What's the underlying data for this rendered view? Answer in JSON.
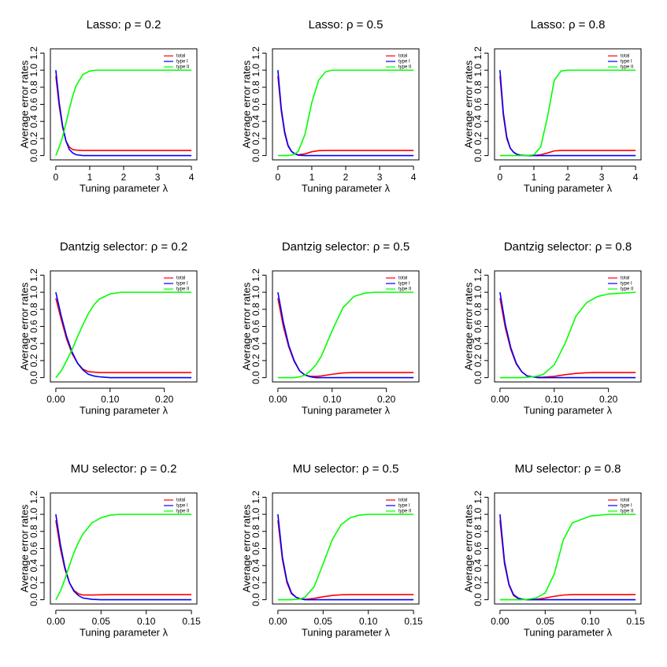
{
  "chart_data": [
    {
      "type": "line",
      "title": "Lasso: ρ = 0.2",
      "xlabel": "Tuning parameter λ",
      "ylabel": "Average error rates",
      "legend": "topright",
      "x": [
        0,
        0.1,
        0.2,
        0.3,
        0.4,
        0.5,
        0.6,
        0.8,
        1,
        1.2,
        1.4,
        1.6,
        1.8,
        2,
        2.5,
        3,
        4
      ],
      "series": [
        {
          "name": "total",
          "color": "#ff0000",
          "values": [
            0.93,
            0.58,
            0.33,
            0.17,
            0.1,
            0.07,
            0.065,
            0.06,
            0.06,
            0.06,
            0.06,
            0.06,
            0.06,
            0.06,
            0.06,
            0.06,
            0.06
          ]
        },
        {
          "name": "type I",
          "color": "#0000ff",
          "values": [
            1,
            0.62,
            0.35,
            0.17,
            0.07,
            0.03,
            0.01,
            0,
            0,
            0,
            0,
            0,
            0,
            0,
            0,
            0,
            0
          ]
        },
        {
          "name": "type II",
          "color": "#00ff00",
          "values": [
            0,
            0.1,
            0.22,
            0.38,
            0.55,
            0.7,
            0.82,
            0.95,
            0.99,
            1,
            1,
            1,
            1,
            1,
            1,
            1,
            1
          ]
        }
      ],
      "xlim": [
        -0.16,
        4.16
      ],
      "ylim": [
        -0.05,
        1.25
      ],
      "xticks": [
        0,
        1,
        2,
        3,
        4
      ],
      "yticks": [
        {
          "value": 0,
          "label": "0.0"
        },
        0.2,
        0.4,
        0.6,
        0.8,
        {
          "value": 1,
          "label": "1.0"
        },
        1.2
      ]
    },
    {
      "type": "line",
      "title": "Lasso: ρ = 0.5",
      "xlabel": "Tuning parameter λ",
      "ylabel": "Average error rates",
      "legend": "topright",
      "x": [
        0,
        0.1,
        0.2,
        0.3,
        0.4,
        0.5,
        0.6,
        0.8,
        1,
        1.2,
        1.4,
        1.6,
        1.8,
        2,
        2.5,
        3,
        4
      ],
      "series": [
        {
          "name": "total",
          "color": "#ff0000",
          "values": [
            0.93,
            0.52,
            0.26,
            0.11,
            0.05,
            0.02,
            0.01,
            0.02,
            0.045,
            0.058,
            0.06,
            0.06,
            0.06,
            0.06,
            0.06,
            0.06,
            0.06
          ]
        },
        {
          "name": "type I",
          "color": "#0000ff",
          "values": [
            1,
            0.55,
            0.28,
            0.12,
            0.05,
            0.02,
            0.005,
            0,
            0,
            0,
            0,
            0,
            0,
            0,
            0,
            0,
            0
          ]
        },
        {
          "name": "type II",
          "color": "#00ff00",
          "values": [
            0,
            0,
            0,
            0,
            0.005,
            0.02,
            0.05,
            0.25,
            0.62,
            0.88,
            0.98,
            1,
            1,
            1,
            1,
            1,
            1
          ]
        }
      ],
      "xlim": [
        -0.16,
        4.16
      ],
      "ylim": [
        -0.05,
        1.25
      ],
      "xticks": [
        0,
        1,
        2,
        3,
        4
      ],
      "yticks": [
        {
          "value": 0,
          "label": "0.0"
        },
        0.2,
        0.4,
        0.6,
        0.8,
        {
          "value": 1,
          "label": "1.0"
        },
        1.2
      ]
    },
    {
      "type": "line",
      "title": "Lasso: ρ = 0.8",
      "xlabel": "Tuning parameter λ",
      "ylabel": "Average error rates",
      "legend": "topright",
      "x": [
        0,
        0.1,
        0.2,
        0.3,
        0.4,
        0.5,
        0.6,
        0.8,
        1,
        1.2,
        1.4,
        1.6,
        1.8,
        2,
        2.5,
        3,
        4
      ],
      "series": [
        {
          "name": "total",
          "color": "#ff0000",
          "values": [
            0.93,
            0.47,
            0.2,
            0.09,
            0.04,
            0.015,
            0.005,
            0,
            0.002,
            0.01,
            0.03,
            0.055,
            0.06,
            0.06,
            0.06,
            0.06,
            0.06
          ]
        },
        {
          "name": "type I",
          "color": "#0000ff",
          "values": [
            1,
            0.5,
            0.22,
            0.09,
            0.04,
            0.015,
            0.005,
            0,
            0,
            0,
            0,
            0,
            0,
            0,
            0,
            0,
            0
          ]
        },
        {
          "name": "type II",
          "color": "#00ff00",
          "values": [
            0,
            0,
            0,
            0,
            0,
            0,
            0,
            0,
            0.01,
            0.1,
            0.45,
            0.88,
            0.99,
            1,
            1,
            1,
            1
          ]
        }
      ],
      "xlim": [
        -0.16,
        4.16
      ],
      "ylim": [
        -0.05,
        1.25
      ],
      "xticks": [
        0,
        1,
        2,
        3,
        4
      ],
      "yticks": [
        {
          "value": 0,
          "label": "0.0"
        },
        0.2,
        0.4,
        0.6,
        0.8,
        {
          "value": 1,
          "label": "1.0"
        },
        1.2
      ]
    },
    {
      "type": "line",
      "title": "Dantzig selector: ρ = 0.2",
      "xlabel": "Tuning parameter λ",
      "ylabel": "Average error rates",
      "legend": "topright",
      "x": [
        0,
        0.01,
        0.02,
        0.03,
        0.04,
        0.05,
        0.06,
        0.07,
        0.08,
        0.1,
        0.12,
        0.14,
        0.16,
        0.18,
        0.2,
        0.25
      ],
      "series": [
        {
          "name": "total",
          "color": "#ff0000",
          "values": [
            0.93,
            0.68,
            0.45,
            0.28,
            0.17,
            0.1,
            0.07,
            0.065,
            0.06,
            0.06,
            0.06,
            0.06,
            0.06,
            0.06,
            0.06,
            0.06
          ]
        },
        {
          "name": "type I",
          "color": "#0000ff",
          "values": [
            1,
            0.72,
            0.48,
            0.3,
            0.17,
            0.09,
            0.04,
            0.02,
            0.01,
            0,
            0,
            0,
            0,
            0,
            0,
            0
          ]
        },
        {
          "name": "type II",
          "color": "#00ff00",
          "values": [
            0,
            0.08,
            0.2,
            0.33,
            0.48,
            0.62,
            0.75,
            0.85,
            0.92,
            0.98,
            1,
            1,
            1,
            1,
            1,
            1
          ]
        }
      ],
      "xlim": [
        -0.01,
        0.26
      ],
      "ylim": [
        -0.05,
        1.25
      ],
      "xticks": [
        {
          "value": 0,
          "label": "0.00"
        },
        {
          "value": 0.1,
          "label": "0.10"
        },
        {
          "value": 0.2,
          "label": "0.20"
        }
      ],
      "yticks": [
        {
          "value": 0,
          "label": "0.0"
        },
        0.2,
        0.4,
        0.6,
        0.8,
        {
          "value": 1,
          "label": "1.0"
        },
        1.2
      ]
    },
    {
      "type": "line",
      "title": "Dantzig selector: ρ = 0.5",
      "xlabel": "Tuning parameter λ",
      "ylabel": "Average error rates",
      "legend": "topright",
      "x": [
        0,
        0.01,
        0.02,
        0.03,
        0.04,
        0.05,
        0.06,
        0.07,
        0.08,
        0.1,
        0.12,
        0.14,
        0.16,
        0.18,
        0.2,
        0.25
      ],
      "series": [
        {
          "name": "total",
          "color": "#ff0000",
          "values": [
            0.93,
            0.6,
            0.36,
            0.19,
            0.08,
            0.03,
            0.015,
            0.015,
            0.02,
            0.04,
            0.055,
            0.06,
            0.06,
            0.06,
            0.06,
            0.06
          ]
        },
        {
          "name": "type I",
          "color": "#0000ff",
          "values": [
            1,
            0.65,
            0.38,
            0.2,
            0.08,
            0.03,
            0.01,
            0,
            0,
            0,
            0,
            0,
            0,
            0,
            0,
            0
          ]
        },
        {
          "name": "type II",
          "color": "#00ff00",
          "values": [
            0,
            0,
            0,
            0,
            0.01,
            0.03,
            0.08,
            0.15,
            0.25,
            0.55,
            0.82,
            0.95,
            0.99,
            1,
            1,
            1
          ]
        }
      ],
      "xlim": [
        -0.01,
        0.26
      ],
      "ylim": [
        -0.05,
        1.25
      ],
      "xticks": [
        {
          "value": 0,
          "label": "0.00"
        },
        {
          "value": 0.1,
          "label": "0.10"
        },
        {
          "value": 0.2,
          "label": "0.20"
        }
      ],
      "yticks": [
        {
          "value": 0,
          "label": "0.0"
        },
        0.2,
        0.4,
        0.6,
        0.8,
        {
          "value": 1,
          "label": "1.0"
        },
        1.2
      ]
    },
    {
      "type": "line",
      "title": "Dantzig selector: ρ = 0.8",
      "xlabel": "Tuning parameter λ",
      "ylabel": "Average error rates",
      "legend": "topright",
      "x": [
        0,
        0.01,
        0.02,
        0.03,
        0.04,
        0.05,
        0.06,
        0.07,
        0.08,
        0.1,
        0.12,
        0.14,
        0.16,
        0.18,
        0.2,
        0.25
      ],
      "series": [
        {
          "name": "total",
          "color": "#ff0000",
          "values": [
            0.93,
            0.58,
            0.33,
            0.16,
            0.07,
            0.02,
            0.01,
            0.005,
            0.006,
            0.015,
            0.035,
            0.05,
            0.058,
            0.06,
            0.06,
            0.06
          ]
        },
        {
          "name": "type I",
          "color": "#0000ff",
          "values": [
            1,
            0.62,
            0.35,
            0.17,
            0.07,
            0.02,
            0.01,
            0,
            0,
            0,
            0,
            0,
            0,
            0,
            0,
            0
          ]
        },
        {
          "name": "type II",
          "color": "#00ff00",
          "values": [
            0,
            0,
            0,
            0,
            0,
            0.005,
            0.01,
            0.02,
            0.04,
            0.15,
            0.4,
            0.72,
            0.88,
            0.95,
            0.98,
            1
          ]
        }
      ],
      "xlim": [
        -0.01,
        0.26
      ],
      "ylim": [
        -0.05,
        1.25
      ],
      "xticks": [
        {
          "value": 0,
          "label": "0.00"
        },
        {
          "value": 0.1,
          "label": "0.10"
        },
        {
          "value": 0.2,
          "label": "0.20"
        }
      ],
      "yticks": [
        {
          "value": 0,
          "label": "0.0"
        },
        0.2,
        0.4,
        0.6,
        0.8,
        {
          "value": 1,
          "label": "1.0"
        },
        1.2
      ]
    },
    {
      "type": "line",
      "title": "MU selector: ρ = 0.2",
      "xlabel": "Tuning parameter λ",
      "ylabel": "Average error rates",
      "legend": "topright",
      "x": [
        0,
        0.005,
        0.01,
        0.015,
        0.02,
        0.025,
        0.03,
        0.04,
        0.05,
        0.06,
        0.07,
        0.08,
        0.09,
        0.1,
        0.12,
        0.15
      ],
      "series": [
        {
          "name": "total",
          "color": "#ff0000",
          "values": [
            0.93,
            0.6,
            0.36,
            0.2,
            0.11,
            0.07,
            0.055,
            0.055,
            0.058,
            0.06,
            0.06,
            0.06,
            0.06,
            0.06,
            0.06,
            0.06
          ]
        },
        {
          "name": "type I",
          "color": "#0000ff",
          "values": [
            1,
            0.65,
            0.38,
            0.2,
            0.1,
            0.05,
            0.02,
            0.005,
            0,
            0,
            0,
            0,
            0,
            0,
            0,
            0
          ]
        },
        {
          "name": "type II",
          "color": "#00ff00",
          "values": [
            0,
            0.1,
            0.24,
            0.4,
            0.55,
            0.67,
            0.77,
            0.9,
            0.96,
            0.99,
            1,
            1,
            1,
            1,
            1,
            1
          ]
        }
      ],
      "xlim": [
        -0.006,
        0.156
      ],
      "ylim": [
        -0.05,
        1.25
      ],
      "xticks": [
        {
          "value": 0,
          "label": "0.00"
        },
        0.05,
        {
          "value": 0.1,
          "label": "0.10"
        },
        0.15
      ],
      "yticks": [
        {
          "value": 0,
          "label": "0.0"
        },
        0.2,
        0.4,
        0.6,
        0.8,
        {
          "value": 1,
          "label": "1.0"
        },
        1.2
      ]
    },
    {
      "type": "line",
      "title": "MU selector: ρ = 0.5",
      "xlabel": "Tuning parameter λ",
      "ylabel": "Average error rates",
      "legend": "topright",
      "x": [
        0,
        0.005,
        0.01,
        0.015,
        0.02,
        0.025,
        0.03,
        0.04,
        0.05,
        0.06,
        0.07,
        0.08,
        0.09,
        0.1,
        0.12,
        0.15
      ],
      "series": [
        {
          "name": "total",
          "color": "#ff0000",
          "values": [
            0.93,
            0.47,
            0.2,
            0.07,
            0.03,
            0.01,
            0.005,
            0.015,
            0.035,
            0.05,
            0.058,
            0.06,
            0.06,
            0.06,
            0.06,
            0.06
          ]
        },
        {
          "name": "type I",
          "color": "#0000ff",
          "values": [
            1,
            0.5,
            0.22,
            0.08,
            0.03,
            0.01,
            0,
            0,
            0,
            0,
            0,
            0,
            0,
            0,
            0,
            0
          ]
        },
        {
          "name": "type II",
          "color": "#00ff00",
          "values": [
            0,
            0,
            0,
            0,
            0.005,
            0.01,
            0.03,
            0.15,
            0.42,
            0.7,
            0.88,
            0.96,
            0.99,
            1,
            1,
            1
          ]
        }
      ],
      "xlim": [
        -0.006,
        0.156
      ],
      "ylim": [
        -0.05,
        1.25
      ],
      "xticks": [
        {
          "value": 0,
          "label": "0.00"
        },
        0.05,
        {
          "value": 0.1,
          "label": "0.10"
        },
        0.15
      ],
      "yticks": [
        {
          "value": 0,
          "label": "0.0"
        },
        0.2,
        0.4,
        0.6,
        0.8,
        {
          "value": 1,
          "label": "1.0"
        },
        1.2
      ]
    },
    {
      "type": "line",
      "title": "MU selector: ρ = 0.8",
      "xlabel": "Tuning parameter λ",
      "ylabel": "Average error rates",
      "legend": "topright",
      "x": [
        0,
        0.005,
        0.01,
        0.015,
        0.02,
        0.025,
        0.03,
        0.04,
        0.05,
        0.06,
        0.07,
        0.08,
        0.09,
        0.1,
        0.12,
        0.15
      ],
      "series": [
        {
          "name": "total",
          "color": "#ff0000",
          "values": [
            0.93,
            0.42,
            0.17,
            0.05,
            0.015,
            0.005,
            0.002,
            0.005,
            0.02,
            0.04,
            0.055,
            0.06,
            0.06,
            0.06,
            0.06,
            0.06
          ]
        },
        {
          "name": "type I",
          "color": "#0000ff",
          "values": [
            1,
            0.45,
            0.18,
            0.06,
            0.02,
            0.005,
            0,
            0,
            0,
            0,
            0,
            0,
            0,
            0,
            0,
            0
          ]
        },
        {
          "name": "type II",
          "color": "#00ff00",
          "values": [
            0,
            0,
            0,
            0,
            0,
            0,
            0.005,
            0.02,
            0.08,
            0.3,
            0.7,
            0.9,
            0.94,
            0.98,
            1,
            1
          ]
        }
      ],
      "xlim": [
        -0.006,
        0.156
      ],
      "ylim": [
        -0.05,
        1.25
      ],
      "xticks": [
        {
          "value": 0,
          "label": "0.00"
        },
        0.05,
        {
          "value": 0.1,
          "label": "0.10"
        },
        0.15
      ],
      "yticks": [
        {
          "value": 0,
          "label": "0.0"
        },
        0.2,
        0.4,
        0.6,
        0.8,
        {
          "value": 1,
          "label": "1.0"
        },
        1.2
      ]
    }
  ]
}
